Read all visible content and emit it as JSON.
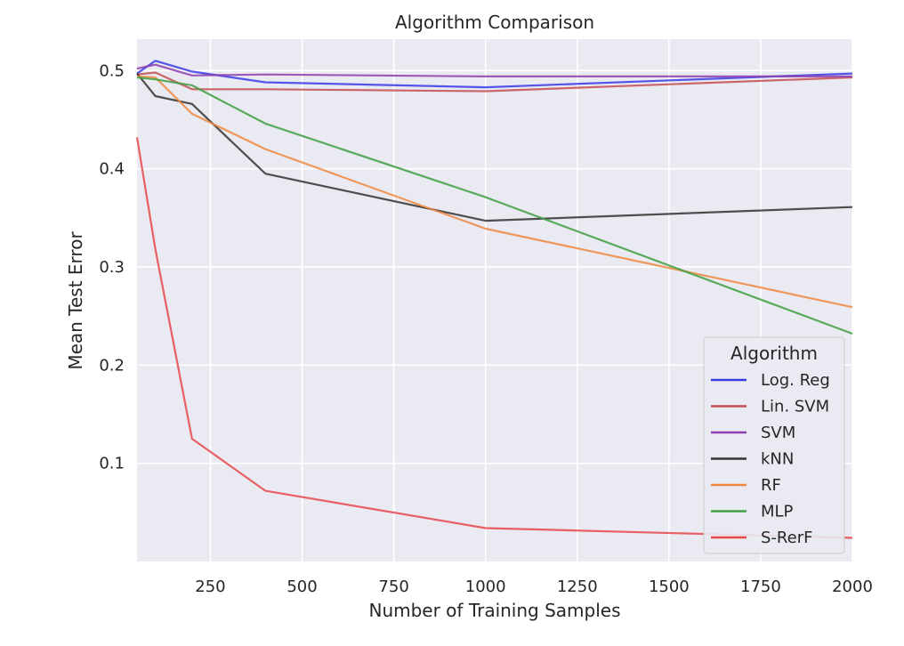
{
  "chart_data": {
    "type": "line",
    "title": "Algorithm Comparison",
    "xlabel": "Number of Training Samples",
    "ylabel": "Mean Test Error",
    "xlim": [
      50,
      2000
    ],
    "ylim": [
      0.0,
      0.532
    ],
    "xticks": [
      250,
      500,
      750,
      1000,
      1250,
      1500,
      1750,
      2000
    ],
    "yticks": [
      0.1,
      0.2,
      0.3,
      0.4,
      0.5
    ],
    "grid": true,
    "background": "#eaeaf2",
    "legend": {
      "title": "Algorithm",
      "placement": "lower-right"
    },
    "x": [
      50,
      100,
      200,
      400,
      1000,
      2000
    ],
    "series": [
      {
        "name": "Log. Reg",
        "color": "#3a3ae6",
        "values": [
          0.497,
          0.51,
          0.499,
          0.488,
          0.483,
          0.497
        ]
      },
      {
        "name": "Lin. SVM",
        "color": "#c44e52",
        "values": [
          0.496,
          0.498,
          0.481,
          0.481,
          0.479,
          0.493
        ]
      },
      {
        "name": "SVM",
        "color": "#8e3fae",
        "values": [
          0.502,
          0.506,
          0.495,
          0.496,
          0.494,
          0.494
        ]
      },
      {
        "name": "kNN",
        "color": "#333333",
        "values": [
          0.497,
          0.474,
          0.466,
          0.395,
          0.347,
          0.361
        ]
      },
      {
        "name": "RF",
        "color": "#f0883e",
        "values": [
          0.494,
          0.493,
          0.456,
          0.42,
          0.339,
          0.259
        ]
      },
      {
        "name": "MLP",
        "color": "#3f9f3f",
        "values": [
          0.493,
          0.491,
          0.485,
          0.446,
          0.371,
          0.232
        ]
      },
      {
        "name": "S-RerF",
        "color": "#e8484a",
        "values": [
          0.432,
          0.318,
          0.125,
          0.072,
          0.034,
          0.024
        ]
      }
    ]
  }
}
